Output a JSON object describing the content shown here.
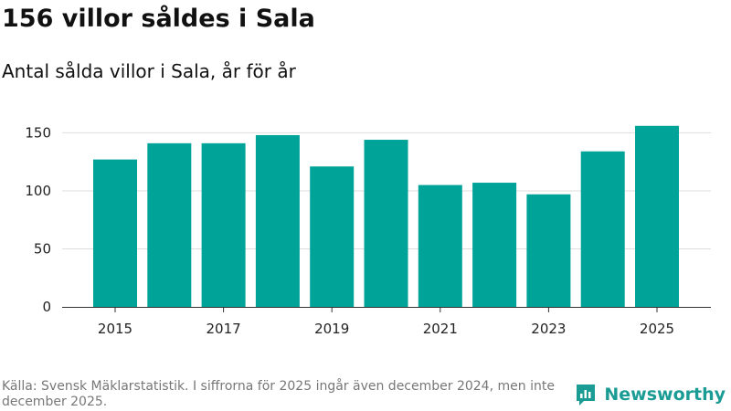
{
  "header": {
    "title": "156 villor såldes i Sala",
    "subtitle": "Antal sålda villor i Sala, år för år"
  },
  "footer": {
    "source": "Källa: Svensk Mäklarstatistik. I siffrorna för 2025 ingår även december 2024, men inte december 2025."
  },
  "brand": {
    "name": "Newsworthy",
    "icon": "bar-chart-logo-icon"
  },
  "colors": {
    "bar": "#00a398",
    "grid": "#dddddd",
    "axis": "#333333",
    "brand": "#1a9c94"
  },
  "chart_data": {
    "type": "bar",
    "title": "156 villor såldes i Sala",
    "subtitle": "Antal sålda villor i Sala, år för år",
    "xlabel": "",
    "ylabel": "",
    "categories": [
      "2015",
      "2016",
      "2017",
      "2018",
      "2019",
      "2020",
      "2021",
      "2022",
      "2023",
      "2024",
      "2025"
    ],
    "values": [
      127,
      141,
      141,
      148,
      121,
      144,
      105,
      107,
      97,
      134,
      156
    ],
    "x_tick_labels": [
      "2015",
      "2017",
      "2019",
      "2021",
      "2023",
      "2025"
    ],
    "y_ticks": [
      0,
      50,
      100,
      150
    ],
    "ylim": [
      0,
      170
    ],
    "grid": true
  }
}
